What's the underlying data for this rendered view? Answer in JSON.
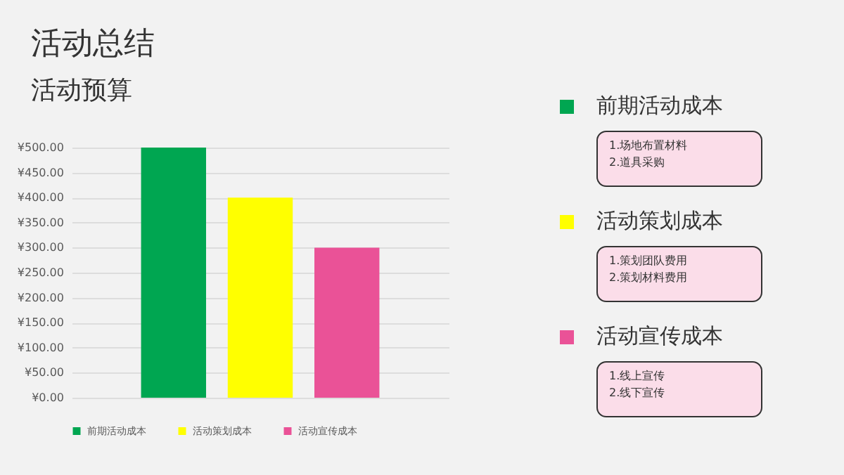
{
  "chart_data": {
    "type": "bar",
    "title": "活动总结",
    "subtitle": "活动预算",
    "categories": [
      null
    ],
    "series": [
      {
        "name": "前期活动成本",
        "color": "#00a651",
        "values": [
          500
        ]
      },
      {
        "name": "活动策划成本",
        "color": "#ffff00",
        "values": [
          400
        ]
      },
      {
        "name": "活动宣传成本",
        "color": "#ea5297",
        "values": [
          300
        ]
      }
    ],
    "ylim": [
      0,
      500
    ],
    "yticks": [
      {
        "value": 0,
        "label": "¥0.00"
      },
      {
        "value": 50,
        "label": "¥50.00"
      },
      {
        "value": 100,
        "label": "¥100.00"
      },
      {
        "value": 150,
        "label": "¥150.00"
      },
      {
        "value": 200,
        "label": "¥200.00"
      },
      {
        "value": 250,
        "label": "¥250.00"
      },
      {
        "value": 300,
        "label": "¥300.00"
      },
      {
        "value": 350,
        "label": "¥350.00"
      },
      {
        "value": 400,
        "label": "¥400.00"
      },
      {
        "value": 450,
        "label": "¥450.00"
      },
      {
        "value": 500,
        "label": "¥500.00"
      }
    ],
    "grid": "y",
    "legend": "bottom",
    "annotations": [
      "1.场地布置材料\n2.道具采购",
      "1.策划团队费用\n2.策划材料费用",
      "1.线上宣传\n2.线下宣传"
    ]
  }
}
